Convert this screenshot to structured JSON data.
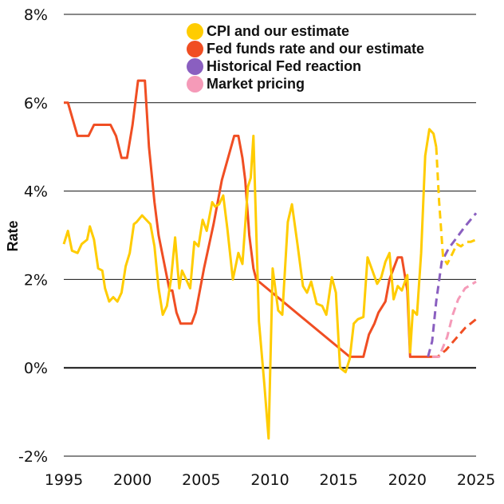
{
  "chart_data": {
    "type": "line",
    "title": "",
    "xlabel": "",
    "ylabel": "Rate",
    "xlim": [
      1995,
      2025
    ],
    "ylim": [
      -2,
      8
    ],
    "grid": true,
    "legend_placement": "top-center",
    "x_ticks": [
      1995,
      2000,
      2005,
      2010,
      2015,
      2020,
      2025
    ],
    "x_tick_labels": [
      "1995",
      "2000",
      "2005",
      "2010",
      "2015",
      "2020",
      "2025"
    ],
    "y_ticks": [
      -2,
      0,
      2,
      4,
      6,
      8
    ],
    "y_tick_labels": [
      "-2%",
      "0%",
      "2%",
      "4%",
      "6%",
      "8%"
    ],
    "series": [
      {
        "name": "Fed funds rate and our estimate",
        "color": "#F04E23",
        "style": "solid",
        "x": [
          1995.0,
          1995.3,
          1996.0,
          1996.8,
          1997.2,
          1998.4,
          1998.8,
          1999.2,
          1999.6,
          2000.0,
          2000.4,
          2000.9,
          2001.2,
          2001.6,
          2001.9,
          2002.7,
          2002.9,
          2003.2,
          2003.5,
          2004.3,
          2004.6,
          2005.2,
          2005.9,
          2006.5,
          2007.4,
          2007.7,
          2008.0,
          2008.2,
          2008.5,
          2008.8,
          2009.0,
          2015.8,
          2016.8,
          2017.2,
          2017.6,
          2017.9,
          2018.4,
          2018.7,
          2019.3,
          2019.6,
          2020.0,
          2020.2,
          2021.8
        ],
        "y": [
          6.0,
          6.0,
          5.25,
          5.25,
          5.5,
          5.5,
          5.25,
          4.75,
          4.75,
          5.5,
          6.5,
          6.5,
          5.0,
          3.75,
          3.0,
          1.75,
          1.75,
          1.25,
          1.0,
          1.0,
          1.25,
          2.25,
          3.25,
          4.25,
          5.25,
          5.25,
          4.75,
          4.25,
          3.0,
          2.25,
          2.0,
          0.25,
          0.25,
          0.75,
          1.0,
          1.25,
          1.5,
          2.0,
          2.5,
          2.5,
          1.75,
          0.25,
          0.25
        ]
      },
      {
        "name": "Fed funds rate and our estimate (estimate)",
        "color": "#F04E23",
        "style": "dashed",
        "x": [
          2021.8,
          2022.2,
          2022.8,
          2023.5,
          2024.2,
          2025.0
        ],
        "y": [
          0.25,
          0.25,
          0.4,
          0.65,
          0.9,
          1.1
        ]
      },
      {
        "name": "CPI and our estimate",
        "color": "#FFCC00",
        "style": "solid",
        "x": [
          1995.0,
          1995.3,
          1995.6,
          1996.0,
          1996.3,
          1996.7,
          1996.9,
          1997.2,
          1997.5,
          1997.8,
          1998.0,
          1998.3,
          1998.6,
          1998.9,
          1999.2,
          1999.5,
          1999.8,
          2000.1,
          2000.3,
          2000.7,
          2001.0,
          2001.3,
          2001.6,
          2001.9,
          2002.2,
          2002.5,
          2002.8,
          2003.1,
          2003.4,
          2003.6,
          2003.9,
          2004.2,
          2004.5,
          2004.8,
          2005.1,
          2005.4,
          2005.8,
          2006.0,
          2006.3,
          2006.6,
          2006.9,
          2007.3,
          2007.7,
          2008.0,
          2008.4,
          2008.6,
          2008.8,
          2009.2,
          2009.6,
          2009.9,
          2010.2,
          2010.6,
          2010.9,
          2011.3,
          2011.6,
          2012.0,
          2012.4,
          2012.7,
          2013.0,
          2013.4,
          2013.8,
          2014.1,
          2014.5,
          2014.8,
          2015.1,
          2015.5,
          2015.8,
          2016.1,
          2016.4,
          2016.8,
          2017.1,
          2017.4,
          2017.8,
          2018.1,
          2018.4,
          2018.7,
          2019.0,
          2019.3,
          2019.6,
          2020.0,
          2020.2,
          2020.4,
          2020.7,
          2021.0,
          2021.3,
          2021.6,
          2021.9,
          2022.1
        ],
        "y": [
          2.8,
          3.1,
          2.65,
          2.6,
          2.8,
          2.9,
          3.2,
          2.9,
          2.25,
          2.2,
          1.8,
          1.5,
          1.6,
          1.5,
          1.7,
          2.3,
          2.6,
          3.25,
          3.3,
          3.45,
          3.35,
          3.25,
          2.75,
          1.8,
          1.2,
          1.4,
          2.0,
          2.95,
          1.8,
          2.2,
          2.0,
          1.8,
          2.85,
          2.75,
          3.35,
          3.1,
          3.75,
          3.65,
          3.7,
          3.9,
          3.15,
          2.0,
          2.6,
          2.35,
          4.1,
          4.3,
          5.25,
          1.05,
          -0.4,
          -1.6,
          2.25,
          1.3,
          1.2,
          3.3,
          3.7,
          2.8,
          1.85,
          1.7,
          1.95,
          1.45,
          1.4,
          1.2,
          2.05,
          1.7,
          0.0,
          -0.1,
          0.2,
          1.0,
          1.1,
          1.15,
          2.5,
          2.25,
          1.9,
          2.05,
          2.4,
          2.6,
          1.55,
          1.85,
          1.75,
          2.1,
          0.35,
          1.3,
          1.2,
          2.6,
          4.8,
          5.4,
          5.3,
          5.0
        ]
      },
      {
        "name": "CPI and our estimate (estimate)",
        "color": "#FFCC00",
        "style": "dashed",
        "x": [
          2022.1,
          2022.3,
          2022.6,
          2022.9,
          2023.3,
          2023.6,
          2023.9,
          2024.3,
          2024.6,
          2025.0
        ],
        "y": [
          5.0,
          3.8,
          2.5,
          2.35,
          2.6,
          2.8,
          2.75,
          2.85,
          2.85,
          2.9
        ]
      },
      {
        "name": "Historical Fed reaction",
        "color": "#8A5FC0",
        "style": "dashed",
        "x": [
          2021.5,
          2021.8,
          2022.1,
          2022.5,
          2023.0,
          2023.6,
          2024.2,
          2025.0
        ],
        "y": [
          0.25,
          0.6,
          1.5,
          2.4,
          2.7,
          2.95,
          3.2,
          3.5
        ]
      },
      {
        "name": "Market pricing",
        "color": "#F59AB8",
        "style": "dashed",
        "x": [
          2021.8,
          2022.3,
          2022.9,
          2023.3,
          2023.7,
          2024.2,
          2025.0
        ],
        "y": [
          0.25,
          0.25,
          0.7,
          1.2,
          1.55,
          1.8,
          1.95
        ]
      }
    ]
  },
  "legend": {
    "items": [
      {
        "label": "CPI and our estimate",
        "color": "#FFCC00"
      },
      {
        "label": "Fed funds rate and our estimate",
        "color": "#F04E23"
      },
      {
        "label": "Historical Fed reaction",
        "color": "#8A5FC0"
      },
      {
        "label": "Market pricing",
        "color": "#F59AB8"
      }
    ]
  }
}
